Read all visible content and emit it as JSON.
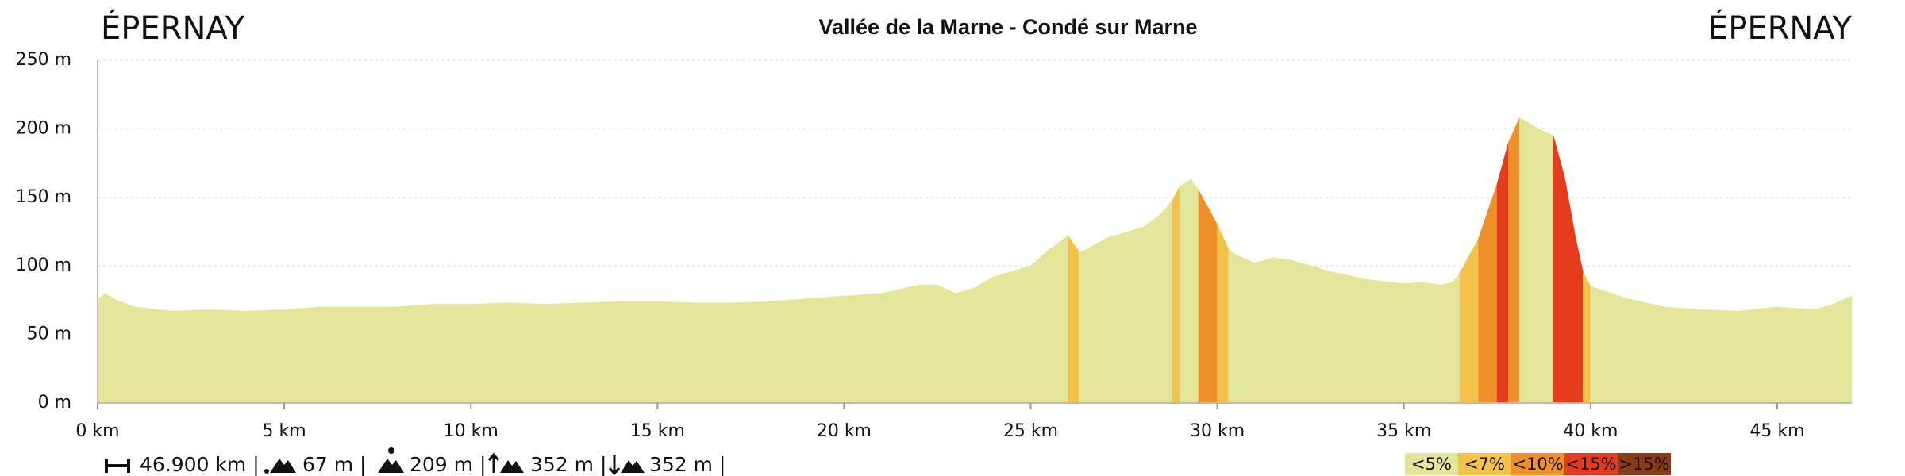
{
  "chart_data": {
    "type": "area",
    "title": "Vallée de la Marne - Condé sur Marne",
    "start_label": "ÉPERNAY",
    "end_label": "ÉPERNAY",
    "x": [
      0,
      0.2,
      0.5,
      1,
      2,
      3,
      4,
      5,
      6,
      7,
      8,
      9,
      10,
      11,
      12,
      13,
      14,
      15,
      16,
      17,
      18,
      19,
      20,
      21,
      22,
      22.5,
      23,
      23.5,
      24,
      25,
      25.5,
      26,
      26.3,
      26.5,
      27,
      28,
      28.5,
      28.8,
      29,
      29.3,
      29.5,
      29.8,
      30,
      30.3,
      30.5,
      31,
      31.5,
      32,
      33,
      34,
      35,
      35.5,
      36,
      36.3,
      36.5,
      37,
      37.5,
      37.8,
      38.1,
      38.3,
      38.6,
      39,
      39.3,
      39.6,
      39.8,
      40,
      41,
      42,
      43,
      44,
      45,
      46,
      46.5,
      47
    ],
    "values": [
      75,
      80,
      75,
      70,
      67,
      68,
      67,
      68,
      70,
      70,
      70,
      72,
      72,
      73,
      72,
      73,
      74,
      74,
      73,
      73,
      74,
      76,
      78,
      80,
      86,
      86,
      80,
      84,
      92,
      100,
      112,
      122,
      110,
      112,
      120,
      128,
      138,
      148,
      158,
      163,
      155,
      140,
      130,
      112,
      108,
      102,
      106,
      104,
      96,
      90,
      87,
      88,
      86,
      88,
      95,
      120,
      160,
      190,
      208,
      205,
      200,
      195,
      165,
      120,
      95,
      85,
      76,
      70,
      68,
      67,
      70,
      68,
      72,
      78
    ],
    "segment_class": [
      0,
      0,
      0,
      0,
      0,
      0,
      0,
      0,
      0,
      0,
      0,
      0,
      0,
      0,
      0,
      0,
      0,
      0,
      0,
      0,
      0,
      0,
      0,
      0,
      0,
      0,
      0,
      0,
      0,
      0,
      0,
      1,
      0,
      0,
      0,
      0,
      0,
      1,
      0,
      0,
      2,
      2,
      1,
      0,
      0,
      0,
      0,
      0,
      0,
      0,
      0,
      0,
      0,
      0,
      1,
      2,
      3,
      2,
      0,
      0,
      0,
      3,
      3,
      3,
      1,
      0,
      0,
      0,
      0,
      0,
      0,
      0,
      0
    ],
    "grade_classes": [
      {
        "name": "<5%",
        "color": "#e4e59a"
      },
      {
        "name": "<7%",
        "color": "#f2c24a"
      },
      {
        "name": "<10%",
        "color": "#ee8f2a"
      },
      {
        "name": "<15%",
        "color": "#e63c1e"
      },
      {
        "name": ">15%",
        "color": "#8b3a1a"
      }
    ],
    "xlim": [
      0,
      47
    ],
    "ylim": [
      0,
      250
    ],
    "xticks": [
      {
        "value": 0,
        "label": "0 km"
      },
      {
        "value": 5,
        "label": "5 km"
      },
      {
        "value": 10,
        "label": "10 km"
      },
      {
        "value": 15,
        "label": "15 km"
      },
      {
        "value": 20,
        "label": "20 km"
      },
      {
        "value": 25,
        "label": "25 km"
      },
      {
        "value": 30,
        "label": "30 km"
      },
      {
        "value": 35,
        "label": "35 km"
      },
      {
        "value": 40,
        "label": "40 km"
      },
      {
        "value": 45,
        "label": "45 km"
      }
    ],
    "yticks": [
      {
        "value": 0,
        "label": "0 m"
      },
      {
        "value": 50,
        "label": "50 m"
      },
      {
        "value": 100,
        "label": "100 m"
      },
      {
        "value": 150,
        "label": "150 m"
      },
      {
        "value": 200,
        "label": "200 m"
      },
      {
        "value": 250,
        "label": "250 m"
      }
    ],
    "grid": true,
    "stats": [
      "46.900 km |",
      "67 m |",
      "209 m |",
      "352 m |",
      "352 m |"
    ]
  }
}
